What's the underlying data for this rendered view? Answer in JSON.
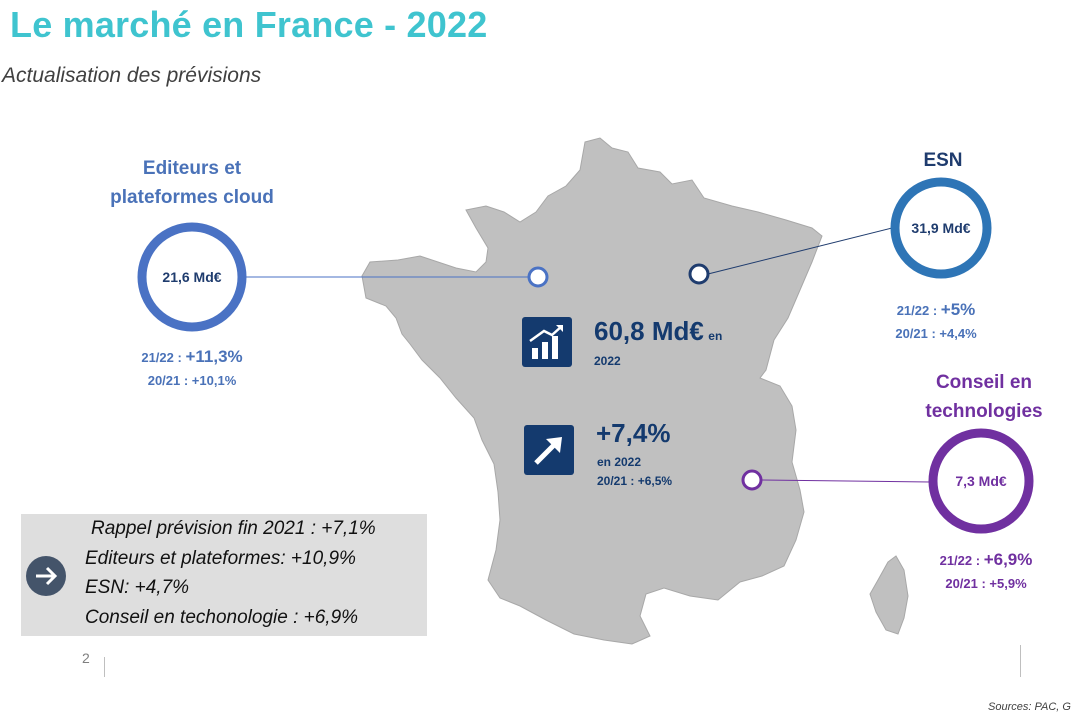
{
  "header": {
    "title": "Le marché en France - 2022",
    "subtitle": "Actualisation des prévisions"
  },
  "segments": {
    "editeurs": {
      "title_line1": "Editeurs et",
      "title_line2": "plateformes cloud",
      "value": "21,6 Md€",
      "g2122_label": "21/22 :",
      "g2122_value": "+11,3%",
      "g2021": "20/21 : +10,1%",
      "color": "#4a72c4"
    },
    "esn": {
      "title": "ESN",
      "value": "31,9 Md€",
      "g2122_label": "21/22 :",
      "g2122_value": "+5%",
      "g2021": "20/21 : +4,4%",
      "color": "#2e75b6"
    },
    "conseil": {
      "title_line1": "Conseil en",
      "title_line2": "technologies",
      "value": "7,3 Md€",
      "g2122_label": "21/22 :",
      "g2122_value": "+6,9%",
      "g2021": "20/21 : +5,9%",
      "color": "#7030a0"
    }
  },
  "kpis": {
    "market": {
      "value": "60,8 Md€",
      "suffix": "en",
      "year": "2022",
      "icon": "bar-chart-growth-icon"
    },
    "growth": {
      "value": "+7,4%",
      "line1": "en 2022",
      "line2": "20/21 : +6,5%",
      "icon": "arrow-up-right-icon"
    }
  },
  "recap": {
    "icon": "arrow-right-icon",
    "lines": [
      "Rappel prévision fin 2021 : +7,1%",
      "Editeurs et plateformes: +10,9%",
      "ESN: +4,7%",
      "Conseil en techonologie : +6,9%"
    ]
  },
  "footer": {
    "page_number": "2",
    "sources": "Sources: PAC, G"
  },
  "colors": {
    "title": "#3fc4cf",
    "map_fill": "#c0c0c0",
    "kpi_navy": "#143a6e"
  }
}
